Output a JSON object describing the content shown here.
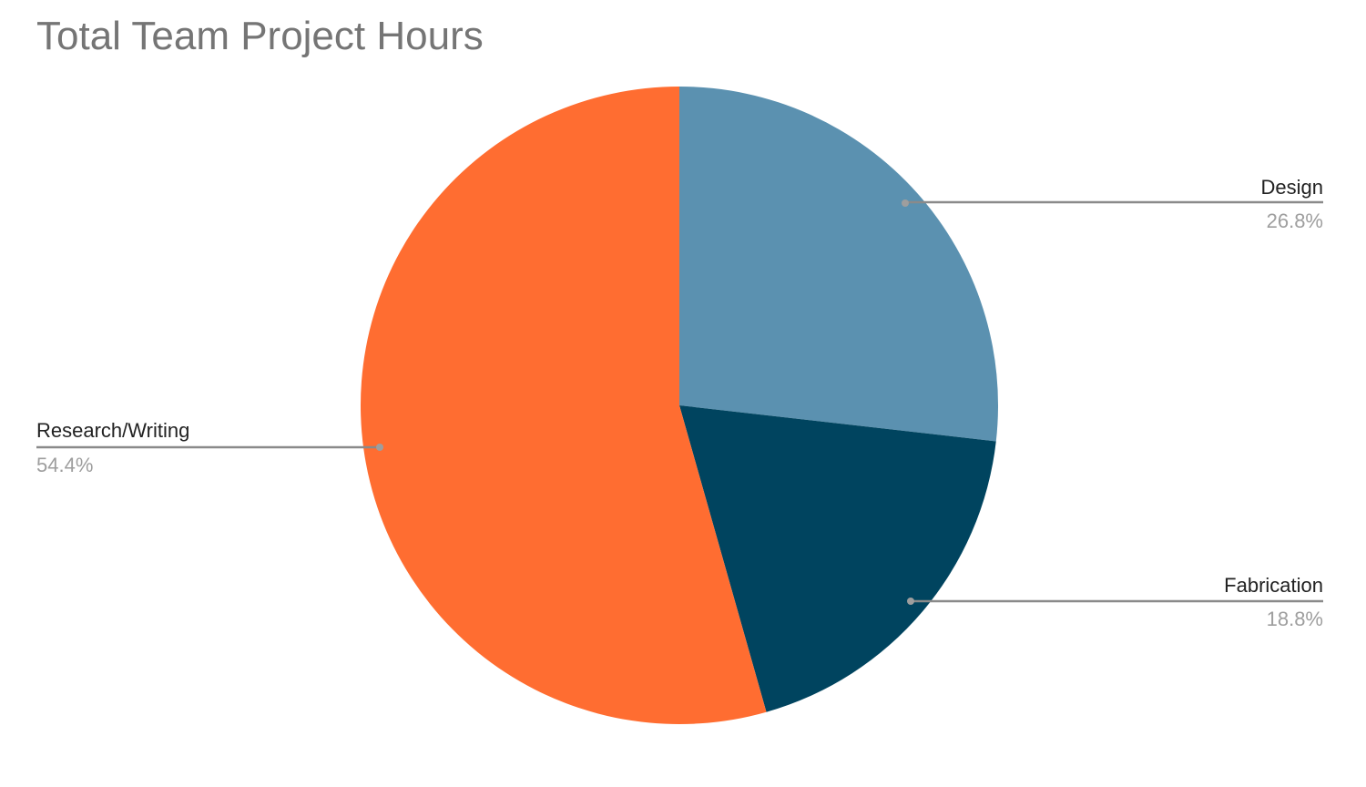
{
  "chart_data": {
    "type": "pie",
    "title": "Total Team Project Hours",
    "start_angle": "top",
    "direction": "clockwise",
    "slices": [
      {
        "label": "Design",
        "value": 26.8,
        "display": "26.8%",
        "color": "#5b91b0"
      },
      {
        "label": "Fabrication",
        "value": 18.8,
        "display": "18.8%",
        "color": "#00445f"
      },
      {
        "label": "Research/Writing",
        "value": 54.4,
        "display": "54.4%",
        "color": "#ff6d31"
      }
    ],
    "legend": "none (leader-line labels)"
  }
}
